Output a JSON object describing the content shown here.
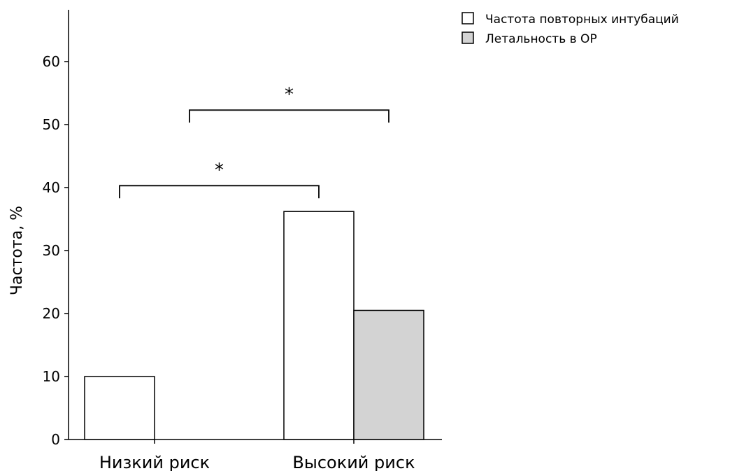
{
  "chart_data": {
    "type": "bar",
    "categories": [
      "Низкий риск",
      "Высокий риск"
    ],
    "series": [
      {
        "name": "Частота повторных интубаций",
        "values": [
          10,
          36.2
        ],
        "color": "#ffffff"
      },
      {
        "name": "Летальность в ОР",
        "values": [
          0,
          20.5
        ],
        "color": "#d3d3d3"
      }
    ],
    "title": "",
    "xlabel": "",
    "ylabel": "Частота, %",
    "ylim": [
      0,
      68
    ],
    "yticks": [
      0,
      10,
      20,
      30,
      40,
      50,
      60
    ],
    "grid": false,
    "legend_position": "top-right, outside plot",
    "significance": [
      {
        "from": [
          0,
          0
        ],
        "to": [
          1,
          0
        ],
        "y": 40.3,
        "label": "*"
      },
      {
        "from": [
          0,
          1
        ],
        "to": [
          1,
          1
        ],
        "y": 52.3,
        "label": "*"
      }
    ]
  }
}
